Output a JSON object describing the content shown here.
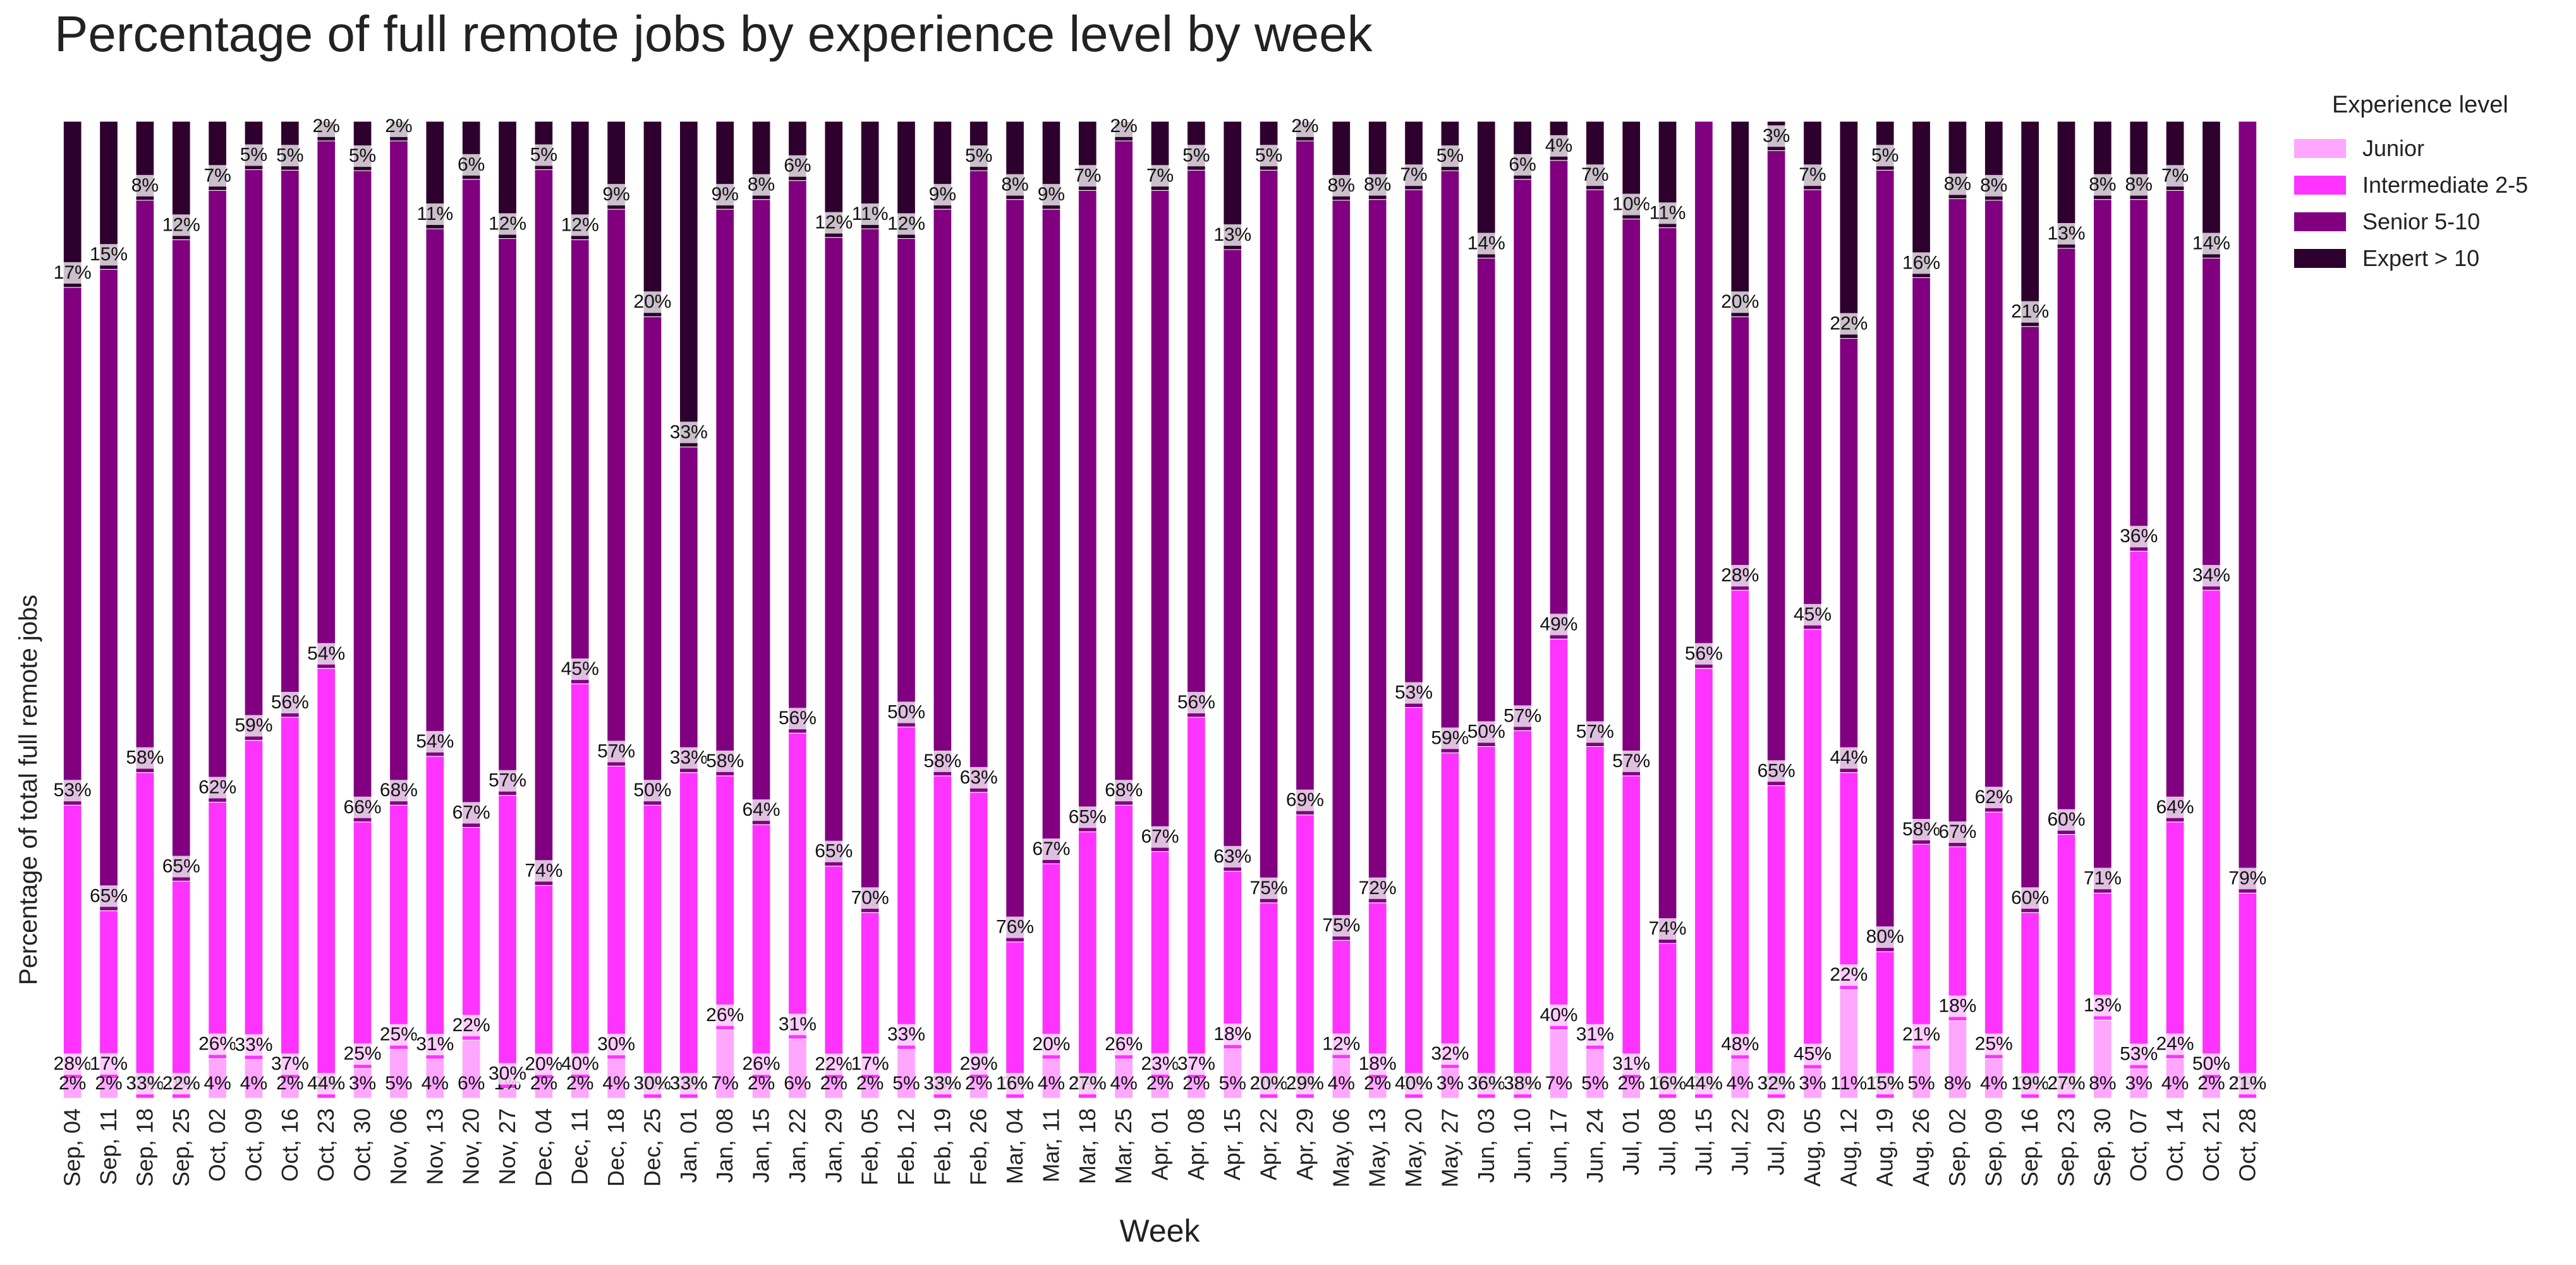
{
  "chart_data": {
    "type": "bar",
    "stacked": true,
    "normalized": true,
    "title": "Percentage of full remote jobs by experience level by week",
    "xlabel": "Week",
    "ylabel": "Percentage of total full remote jobs",
    "ylim": [
      0,
      100
    ],
    "grid": false,
    "legend": {
      "title": "Experience level",
      "placement": "right-top"
    },
    "categories": [
      "Sep, 04",
      "Sep, 11",
      "Sep, 18",
      "Sep, 25",
      "Oct, 02",
      "Oct, 09",
      "Oct, 16",
      "Oct, 23",
      "Oct, 30",
      "Nov, 06",
      "Nov, 13",
      "Nov, 20",
      "Nov, 27",
      "Dec, 04",
      "Dec, 11",
      "Dec, 18",
      "Dec, 25",
      "Jan, 01",
      "Jan, 08",
      "Jan, 15",
      "Jan, 22",
      "Jan, 29",
      "Feb, 05",
      "Feb, 12",
      "Feb, 19",
      "Feb, 26",
      "Mar, 04",
      "Mar, 11",
      "Mar, 18",
      "Mar, 25",
      "Apr, 01",
      "Apr, 08",
      "Apr, 15",
      "Apr, 22",
      "Apr, 29",
      "May, 06",
      "May, 13",
      "May, 20",
      "May, 27",
      "Jun, 03",
      "Jun, 10",
      "Jun, 17",
      "Jun, 24",
      "Jul, 01",
      "Jul, 08",
      "Jul, 15",
      "Jul, 22",
      "Jul, 29",
      "Aug, 05",
      "Aug, 12",
      "Aug, 19",
      "Aug, 26",
      "Sep, 02",
      "Sep, 09",
      "Sep, 16",
      "Sep, 23",
      "Sep, 30",
      "Oct, 07",
      "Oct, 14",
      "Oct, 21",
      "Oct, 28"
    ],
    "series": [
      {
        "name": "Junior",
        "color": "#ffa6ff",
        "values": [
          2,
          2,
          0,
          0,
          4,
          4,
          2,
          0,
          3,
          5,
          4,
          6,
          1,
          2,
          2,
          4,
          0,
          0,
          7,
          2,
          6,
          2,
          2,
          5,
          0,
          2,
          0,
          4,
          0,
          4,
          2,
          2,
          5,
          0,
          0,
          4,
          2,
          0,
          3,
          0,
          0,
          7,
          5,
          2,
          0,
          0,
          4,
          0,
          3,
          11,
          0,
          5,
          8,
          4,
          0,
          0,
          8,
          3,
          4,
          2,
          0
        ]
      },
      {
        "name": "Intermediate 2-5",
        "color": "#ff33ff",
        "values": [
          28,
          17,
          33,
          22,
          26,
          33,
          37,
          44,
          25,
          25,
          31,
          22,
          30,
          20,
          40,
          30,
          30,
          33,
          26,
          26,
          31,
          22,
          17,
          33,
          33,
          29,
          16,
          20,
          27,
          26,
          23,
          37,
          18,
          20,
          29,
          12,
          18,
          40,
          32,
          36,
          38,
          40,
          31,
          31,
          16,
          44,
          48,
          32,
          45,
          22,
          15,
          21,
          18,
          25,
          19,
          27,
          13,
          53,
          24,
          50,
          21
        ]
      },
      {
        "name": "Senior 5-10",
        "color": "#800080",
        "values": [
          53,
          65,
          58,
          65,
          62,
          59,
          56,
          54,
          66,
          68,
          54,
          67,
          57,
          74,
          45,
          57,
          50,
          33,
          58,
          64,
          56,
          65,
          70,
          50,
          58,
          63,
          76,
          67,
          65,
          68,
          67,
          56,
          63,
          75,
          69,
          75,
          72,
          53,
          59,
          50,
          57,
          49,
          57,
          57,
          74,
          56,
          28,
          65,
          45,
          44,
          80,
          58,
          67,
          62,
          60,
          60,
          71,
          36,
          64,
          34,
          79
        ]
      },
      {
        "name": "Expert > 10",
        "color": "#2d002d",
        "values": [
          17,
          15,
          8,
          12,
          7,
          5,
          5,
          2,
          5,
          2,
          11,
          6,
          12,
          5,
          12,
          9,
          20,
          33,
          9,
          8,
          6,
          12,
          11,
          12,
          9,
          5,
          8,
          9,
          7,
          2,
          7,
          5,
          13,
          5,
          2,
          8,
          8,
          7,
          5,
          14,
          6,
          4,
          7,
          10,
          11,
          0,
          20,
          3,
          7,
          22,
          5,
          16,
          8,
          8,
          21,
          13,
          8,
          8,
          7,
          14,
          0
        ]
      }
    ],
    "data_labels": [
      [
        "2%",
        "28%",
        "53%",
        "17%"
      ],
      [
        "2%",
        "17%",
        "65%",
        "15%"
      ],
      [
        "0%",
        "33%",
        "58%",
        "8%"
      ],
      [
        "0%",
        "22%",
        "65%",
        "12%"
      ],
      [
        "4%",
        "26%",
        "62%",
        "7%"
      ],
      [
        "4%",
        "33%",
        "59%",
        "5%"
      ],
      [
        "2%",
        "37%",
        "56%",
        "5%"
      ],
      [
        "0%",
        "44%",
        "54%",
        "2%"
      ],
      [
        "3%",
        "25%",
        "66%",
        "5%"
      ],
      [
        "5%",
        "25%",
        "68%",
        "2%"
      ],
      [
        "4%",
        "31%",
        "54%",
        "11%"
      ],
      [
        "6%",
        "22%",
        "67%",
        "6%"
      ],
      [
        "1%",
        "30%",
        "57%",
        "12%"
      ],
      [
        "2%",
        "20%",
        "74%",
        "5%"
      ],
      [
        "2%",
        "40%",
        "45%",
        "12%"
      ],
      [
        "4%",
        "30%",
        "57%",
        "9%"
      ],
      [
        "0%",
        "30%",
        "50%",
        "20%"
      ],
      [
        "0%",
        "33%",
        "33%",
        "33%"
      ],
      [
        "7%",
        "26%",
        "58%",
        "9%"
      ],
      [
        "2%",
        "26%",
        "64%",
        "8%"
      ],
      [
        "6%",
        "31%",
        "56%",
        "6%"
      ],
      [
        "2%",
        "22%",
        "65%",
        "12%"
      ],
      [
        "2%",
        "17%",
        "70%",
        "11%"
      ],
      [
        "5%",
        "33%",
        "50%",
        "12%"
      ],
      [
        "0%",
        "33%",
        "58%",
        "9%"
      ],
      [
        "2%",
        "29%",
        "63%",
        "5%"
      ],
      [
        "0%",
        "16%",
        "76%",
        "8%"
      ],
      [
        "4%",
        "20%",
        "67%",
        "9%"
      ],
      [
        "0%",
        "27%",
        "65%",
        "7%"
      ],
      [
        "4%",
        "26%",
        "68%",
        "2%"
      ],
      [
        "2%",
        "23%",
        "67%",
        "7%"
      ],
      [
        "2%",
        "37%",
        "56%",
        "5%"
      ],
      [
        "5%",
        "18%",
        "63%",
        "13%"
      ],
      [
        "0%",
        "20%",
        "75%",
        "5%"
      ],
      [
        "0%",
        "29%",
        "69%",
        "2%"
      ],
      [
        "4%",
        "12%",
        "75%",
        "8%"
      ],
      [
        "2%",
        "18%",
        "72%",
        "8%"
      ],
      [
        "0%",
        "40%",
        "53%",
        "7%"
      ],
      [
        "3%",
        "32%",
        "59%",
        "5%"
      ],
      [
        "0%",
        "36%",
        "50%",
        "14%"
      ],
      [
        "0%",
        "38%",
        "57%",
        "6%"
      ],
      [
        "7%",
        "40%",
        "49%",
        "4%"
      ],
      [
        "5%",
        "31%",
        "57%",
        "7%"
      ],
      [
        "2%",
        "31%",
        "57%",
        "10%"
      ],
      [
        "0%",
        "16%",
        "74%",
        "11%"
      ],
      [
        "0%",
        "44%",
        "56%",
        ""
      ],
      [
        "4%",
        "48%",
        "28%",
        "20%"
      ],
      [
        "0%",
        "32%",
        "65%",
        "3%"
      ],
      [
        "3%",
        "45%",
        "45%",
        "7%"
      ],
      [
        "11%",
        "22%",
        "44%",
        "22%"
      ],
      [
        "0%",
        "15%",
        "80%",
        "5%"
      ],
      [
        "5%",
        "21%",
        "58%",
        "16%"
      ],
      [
        "8%",
        "18%",
        "67%",
        "8%"
      ],
      [
        "4%",
        "25%",
        "62%",
        "8%"
      ],
      [
        "0%",
        "19%",
        "60%",
        "21%"
      ],
      [
        "0%",
        "27%",
        "60%",
        "13%"
      ],
      [
        "8%",
        "13%",
        "71%",
        "8%"
      ],
      [
        "3%",
        "53%",
        "36%",
        "8%"
      ],
      [
        "4%",
        "24%",
        "64%",
        "7%"
      ],
      [
        "2%",
        "50%",
        "34%",
        "14%"
      ],
      [
        "0%",
        "21%",
        "79%",
        ""
      ]
    ]
  }
}
